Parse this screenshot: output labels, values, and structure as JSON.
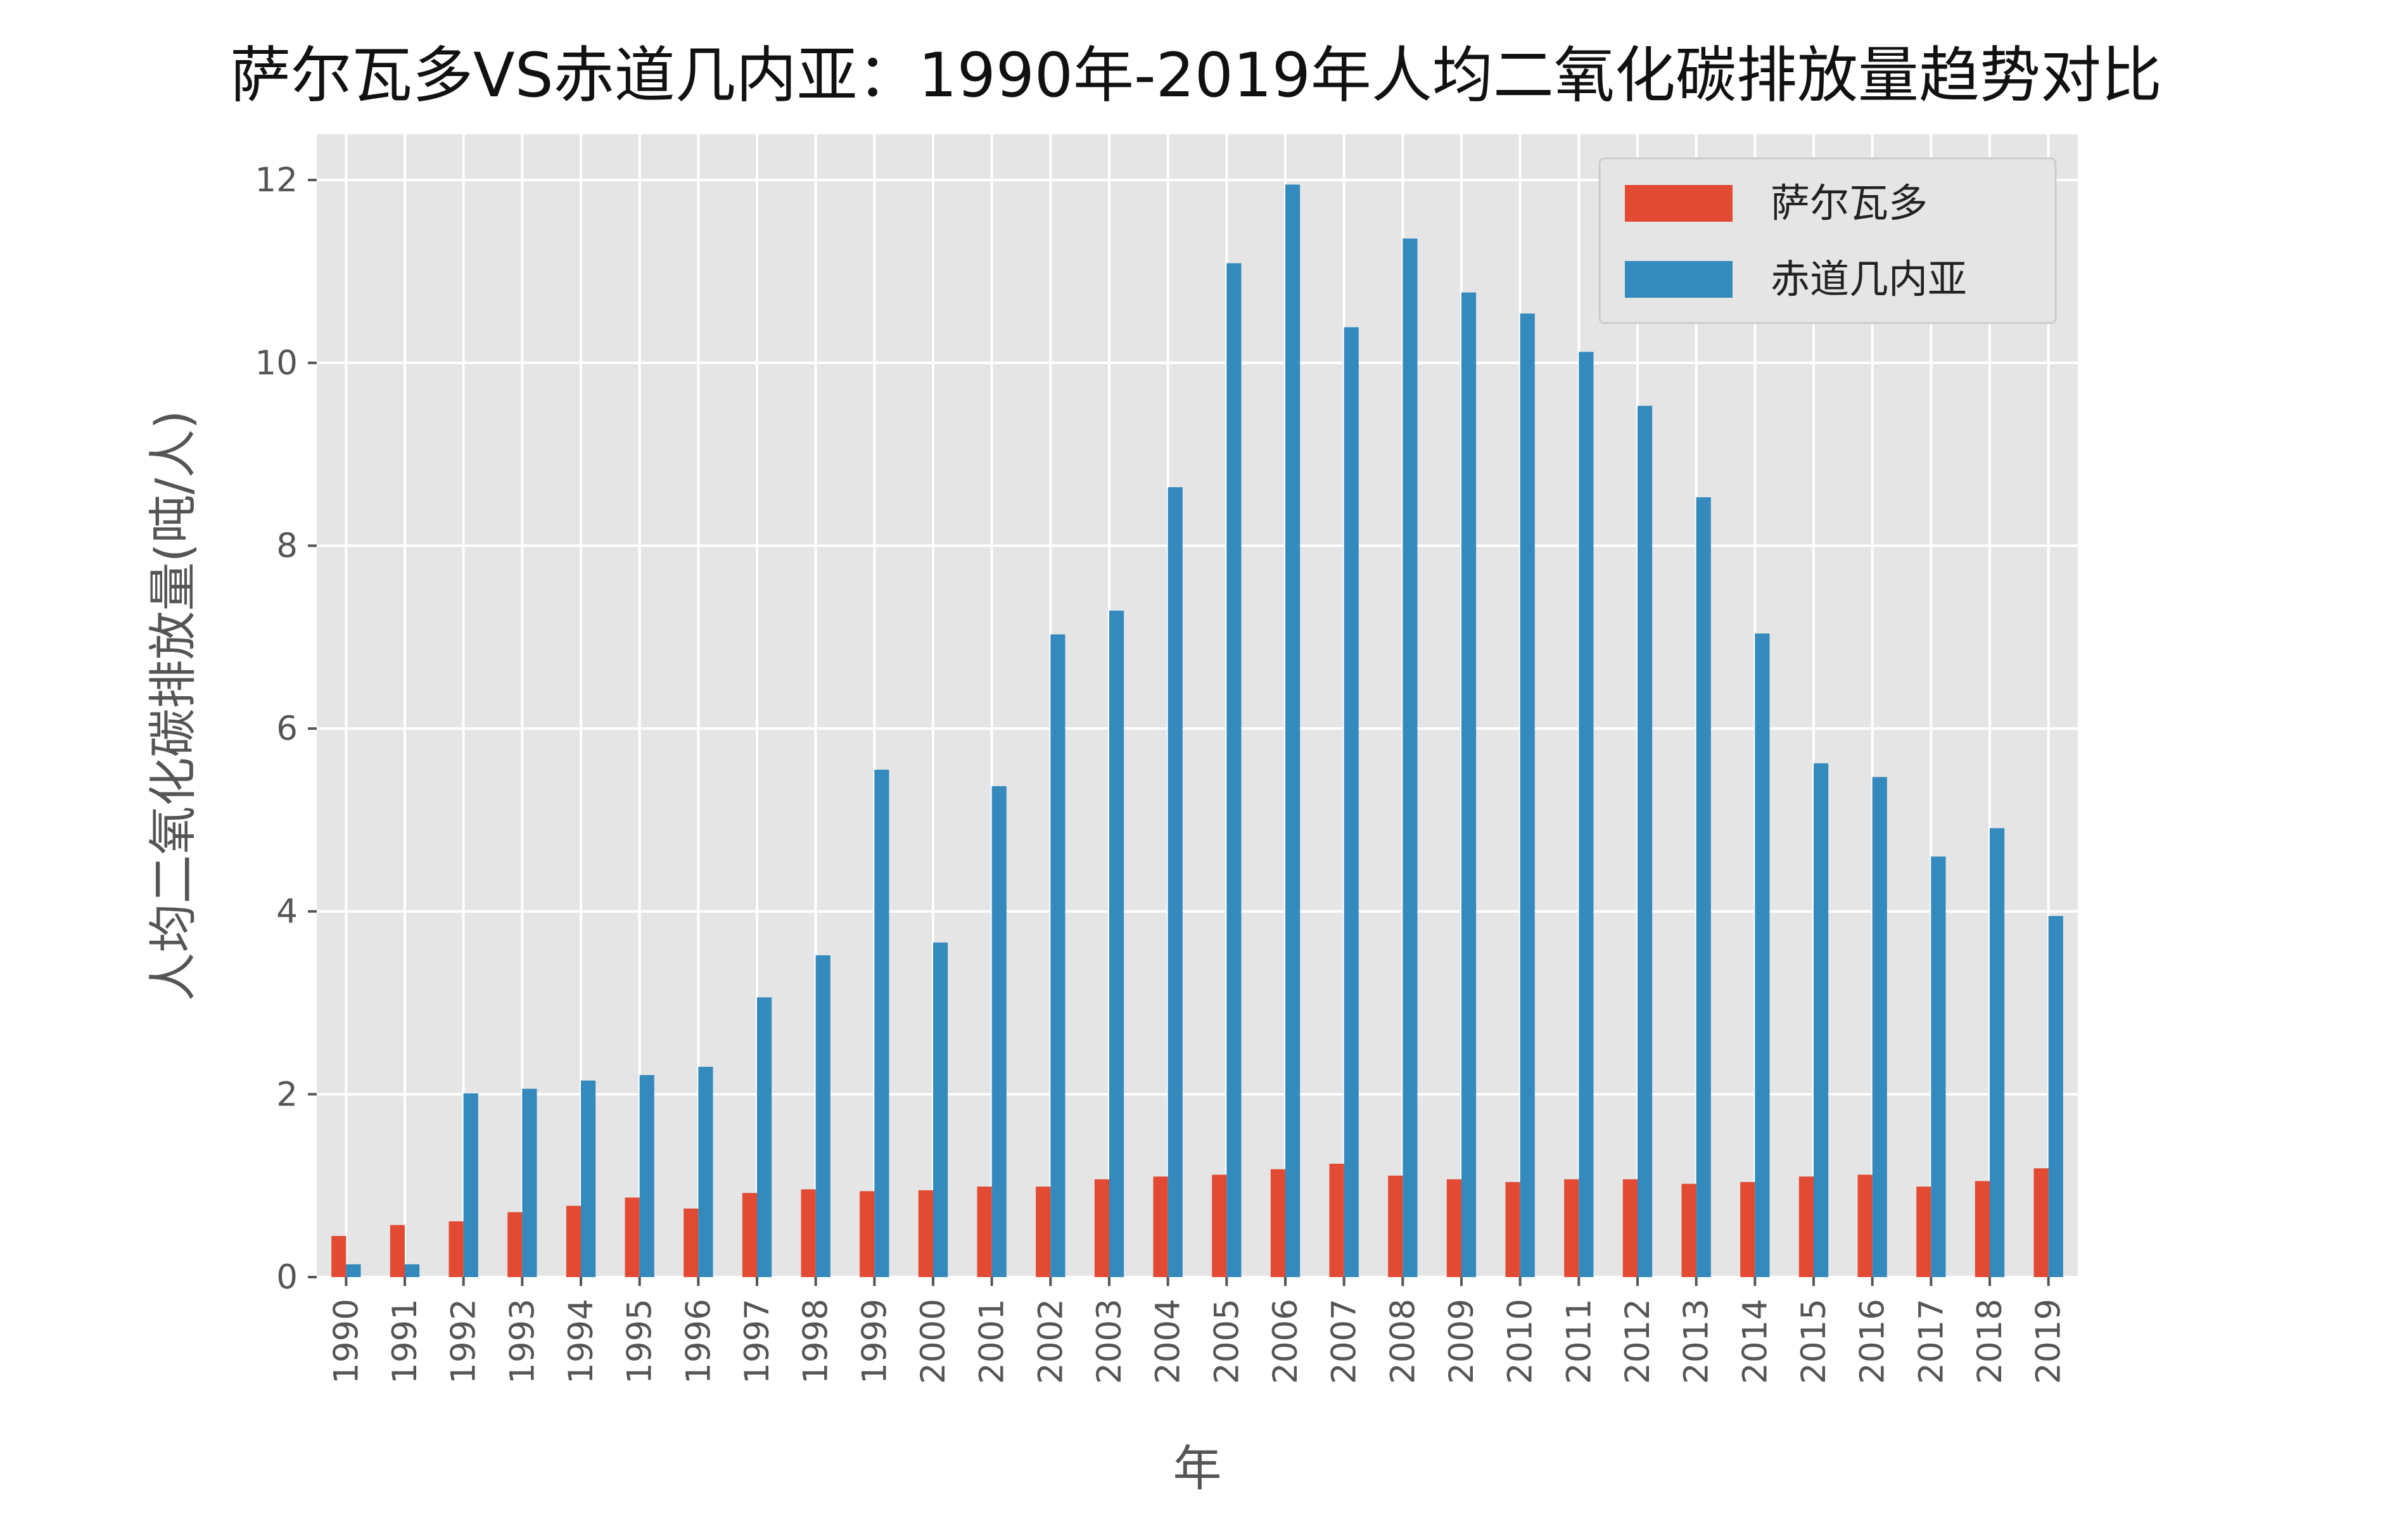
{
  "chart_data": {
    "type": "bar",
    "title": "萨尔瓦多VS赤道几内亚：1990年-2019年人均二氧化碳排放量趋势对比",
    "xlabel": "年",
    "ylabel": "人均二氧化碳排放量(吨/人)",
    "ylim": [
      0,
      12.5
    ],
    "yticks": [
      "0",
      "2",
      "4",
      "6",
      "8",
      "10",
      "12"
    ],
    "grid": true,
    "legend_position": "top-right",
    "categories": [
      "1990",
      "1991",
      "1992",
      "1993",
      "1994",
      "1995",
      "1996",
      "1997",
      "1998",
      "1999",
      "2000",
      "2001",
      "2002",
      "2003",
      "2004",
      "2005",
      "2006",
      "2007",
      "2008",
      "2009",
      "2010",
      "2011",
      "2012",
      "2013",
      "2014",
      "2015",
      "2016",
      "2017",
      "2018",
      "2019"
    ],
    "series": [
      {
        "name": "萨尔瓦多",
        "color": "#E24A33",
        "values": [
          0.45,
          0.57,
          0.61,
          0.71,
          0.78,
          0.87,
          0.75,
          0.92,
          0.96,
          0.94,
          0.95,
          0.99,
          0.99,
          1.07,
          1.1,
          1.12,
          1.18,
          1.24,
          1.11,
          1.07,
          1.04,
          1.07,
          1.07,
          1.02,
          1.04,
          1.1,
          1.12,
          0.99,
          1.05,
          1.19
        ]
      },
      {
        "name": "赤道几内亚",
        "color": "#348ABD",
        "values": [
          0.14,
          0.14,
          2.01,
          2.06,
          2.15,
          2.21,
          2.3,
          3.06,
          3.52,
          5.55,
          3.66,
          5.37,
          7.03,
          7.29,
          8.64,
          11.09,
          11.95,
          10.39,
          11.36,
          10.77,
          10.54,
          10.12,
          9.53,
          8.53,
          7.04,
          5.62,
          5.47,
          4.6,
          4.91,
          3.95
        ]
      }
    ]
  }
}
